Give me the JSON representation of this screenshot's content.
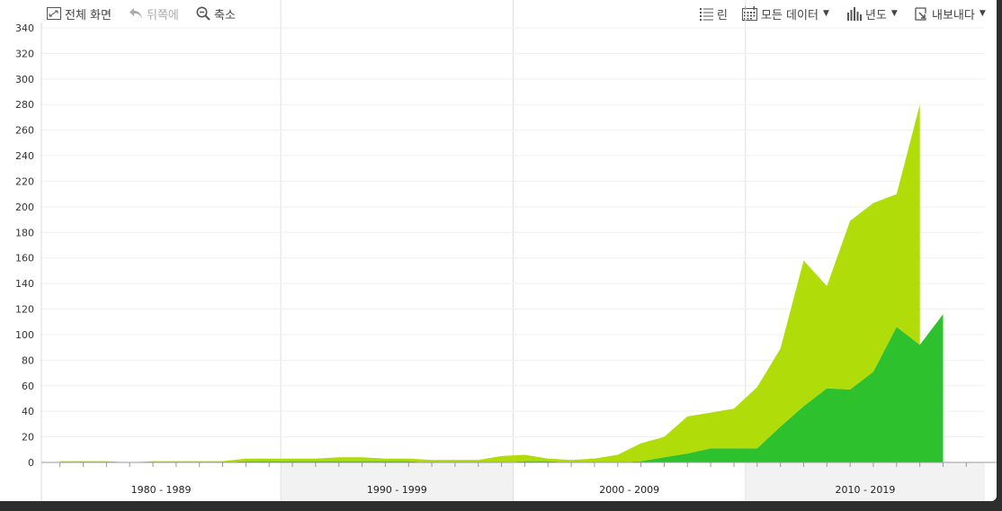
{
  "toolbar": {
    "fullscreen": "전체 화면",
    "back": "뒤쪽에",
    "zoom_out": "축소",
    "legend": "린",
    "all_data": "모든 데이터",
    "year": "년도",
    "export": "내보내다"
  },
  "icons": {
    "fullscreen": "fullscreen-icon",
    "back": "undo-arrow-icon",
    "zoom_out": "magnifier-minus-icon",
    "legend": "list-icon",
    "all_data": "calendar-icon",
    "year": "bar-chart-icon",
    "export": "export-icon",
    "caret": "chevron-down-icon"
  },
  "chart_data": {
    "type": "area",
    "stacked": true,
    "x": [
      1980,
      1981,
      1982,
      1983,
      1984,
      1985,
      1986,
      1987,
      1988,
      1989,
      1990,
      1991,
      1992,
      1993,
      1994,
      1995,
      1996,
      1997,
      1998,
      1999,
      2000,
      2001,
      2002,
      2003,
      2004,
      2005,
      2006,
      2007,
      2008,
      2009,
      2010,
      2011,
      2012,
      2013,
      2014,
      2015,
      2016,
      2017,
      2018,
      2019
    ],
    "x_groups": [
      {
        "label": "1980 - 1989",
        "start": 1980,
        "end": 1989
      },
      {
        "label": "1990 - 1999",
        "start": 1990,
        "end": 1999
      },
      {
        "label": "2000 - 2009",
        "start": 2000,
        "end": 2009
      },
      {
        "label": "2010 - 2019",
        "start": 2010,
        "end": 2019
      }
    ],
    "series": [
      {
        "color": "#2ec12e",
        "values": [
          0,
          0,
          0,
          0,
          0,
          0,
          0,
          0,
          1,
          1,
          1,
          1,
          1,
          1,
          1,
          1,
          0,
          0,
          0,
          0,
          1,
          1,
          0,
          0,
          0,
          1,
          4,
          7,
          11,
          11,
          11,
          28,
          44,
          58,
          57,
          71,
          106,
          92,
          116,
          null
        ]
      },
      {
        "color": "#b0dc0a",
        "values": [
          1,
          1,
          1,
          0,
          1,
          1,
          1,
          1,
          2,
          2,
          2,
          2,
          3,
          3,
          2,
          2,
          2,
          2,
          2,
          5,
          5,
          2,
          2,
          3,
          6,
          14,
          16,
          29,
          28,
          31,
          48,
          61,
          114,
          80,
          132,
          132,
          104,
          188,
          null,
          null
        ]
      }
    ],
    "stacked_totals": [
      1,
      1,
      1,
      0,
      1,
      1,
      1,
      1,
      3,
      3,
      3,
      3,
      4,
      4,
      3,
      3,
      2,
      2,
      2,
      5,
      6,
      3,
      2,
      3,
      6,
      15,
      20,
      36,
      39,
      42,
      59,
      89,
      158,
      138,
      189,
      203,
      210,
      280,
      null,
      null
    ],
    "ylim": [
      0,
      340
    ],
    "yticks": [
      0,
      20,
      40,
      60,
      80,
      100,
      120,
      140,
      160,
      180,
      200,
      220,
      240,
      260,
      280,
      300,
      320,
      340
    ],
    "grid": true,
    "legend": "none"
  }
}
